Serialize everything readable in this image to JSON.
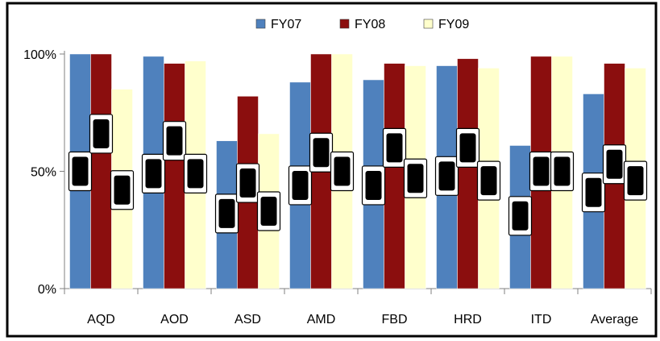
{
  "chart_data": {
    "type": "bar",
    "categories": [
      "AQD",
      "AOD",
      "ASD",
      "AMD",
      "FBD",
      "HRD",
      "ITD",
      "Average"
    ],
    "series": [
      {
        "name": "FY07",
        "values": [
          100,
          99,
          63,
          88,
          89,
          95,
          61,
          83
        ]
      },
      {
        "name": "FY08",
        "values": [
          100,
          96,
          82,
          100,
          96,
          98,
          99,
          96
        ]
      },
      {
        "name": "FY09",
        "values": [
          85,
          97,
          66,
          100,
          95,
          94,
          99,
          94
        ]
      }
    ],
    "overlay_marker_levels": [
      [
        50,
        66,
        42
      ],
      [
        49,
        63,
        49
      ],
      [
        32,
        45,
        33
      ],
      [
        44,
        58,
        50
      ],
      [
        44,
        60,
        47
      ],
      [
        48,
        60,
        46
      ],
      [
        31,
        50,
        50
      ],
      [
        41,
        53,
        46
      ]
    ],
    "ylim": [
      0,
      100
    ],
    "y_ticks": [
      0,
      50,
      100
    ],
    "y_tick_labels": [
      "0%",
      "50%",
      "100%"
    ],
    "title": "",
    "xlabel": "",
    "ylabel": "",
    "grid": false,
    "legend_position": "top",
    "colors": {
      "FY07": "#4f81bd",
      "FY08": "#8b0e0e",
      "FY09": "#ffffcc"
    }
  }
}
